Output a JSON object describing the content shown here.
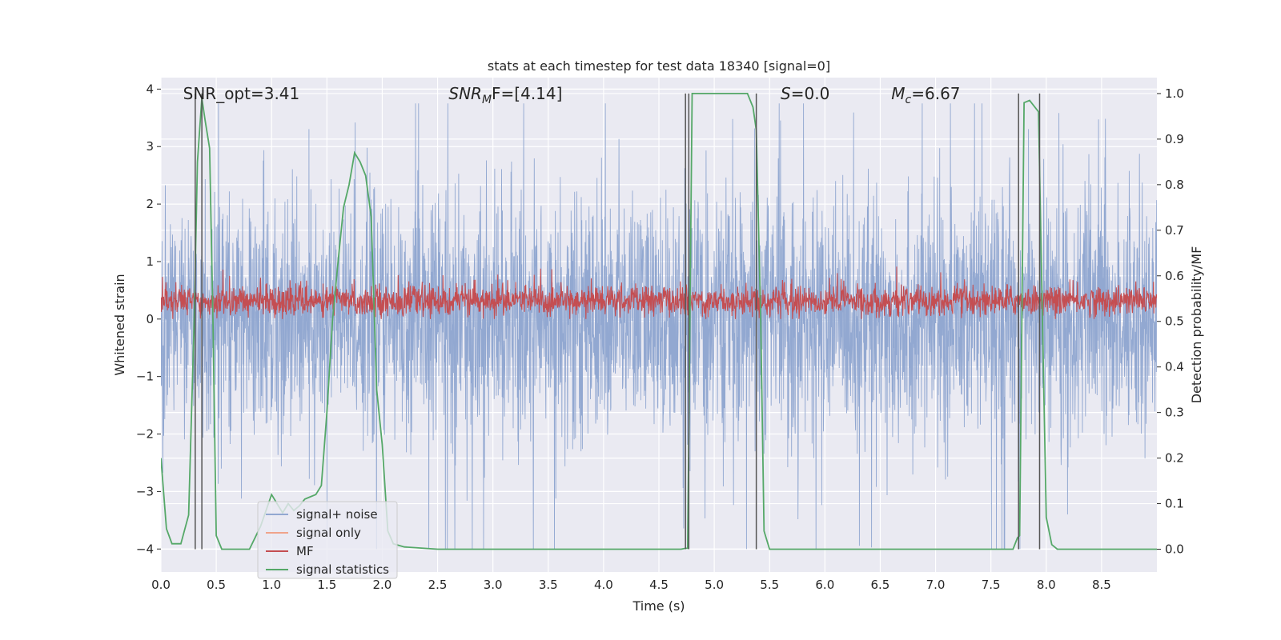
{
  "chart_data": {
    "type": "line",
    "title": "stats at each timestep for test data 18340 [signal=0]",
    "xlabel": "Time (s)",
    "ylabel_left": "Whitened strain",
    "ylabel_right": "Detection probability/MF",
    "xlim": [
      0,
      9.0
    ],
    "ylim_left": [
      -4.4,
      4.2
    ],
    "ylim_right": [
      -0.05,
      1.035
    ],
    "x_ticks": [
      "0.0",
      "0.5",
      "1.0",
      "1.5",
      "2.0",
      "2.5",
      "3.0",
      "3.5",
      "4.0",
      "4.5",
      "5.0",
      "5.5",
      "6.0",
      "6.5",
      "7.0",
      "7.5",
      "8.0",
      "8.5"
    ],
    "y_ticks_left": [
      "4",
      "3",
      "2",
      "1",
      "0",
      "−1",
      "−2",
      "−3",
      "−4"
    ],
    "y_ticks_right": [
      "1.0",
      "0.9",
      "0.8",
      "0.7",
      "0.6",
      "0.5",
      "0.4",
      "0.3",
      "0.2",
      "0.1",
      "0.0"
    ],
    "grid": true,
    "legend_position": "lower-left",
    "annotations": [
      {
        "label": "SNR_opt=3.41",
        "x": 0.2
      },
      {
        "label_main": "SNR",
        "label_sub": "M",
        "label_tail": "F=[4.14]",
        "x": 2.6
      },
      {
        "label_main": "S",
        "label_tail": "=0.0",
        "x": 5.6
      },
      {
        "label_main": "M",
        "label_sub": "c",
        "label_tail": "=6.67",
        "x": 6.6
      }
    ],
    "series": [
      {
        "name": "signal+ noise",
        "color": "#92a8d1",
        "axis": "left",
        "description": "noise band approx -2.5..2.5 with spikes to ±3.7"
      },
      {
        "name": "signal only",
        "color": "#f0a48b",
        "axis": "left",
        "values": []
      },
      {
        "name": "MF",
        "color": "#c44e52",
        "axis": "left",
        "description": "band approx 0..0.7"
      },
      {
        "name": "signal statistics",
        "color": "#55a868",
        "axis": "right",
        "x": [
          0.0,
          0.05,
          0.1,
          0.18,
          0.25,
          0.3,
          0.33,
          0.37,
          0.4,
          0.44,
          0.47,
          0.5,
          0.55,
          0.6,
          0.8,
          0.9,
          1.0,
          1.05,
          1.1,
          1.15,
          1.2,
          1.25,
          1.3,
          1.35,
          1.4,
          1.45,
          1.5,
          1.55,
          1.6,
          1.65,
          1.7,
          1.75,
          1.8,
          1.85,
          1.9,
          1.95,
          2.0,
          2.05,
          2.1,
          2.2,
          2.5,
          3.0,
          4.0,
          4.7,
          4.74,
          4.76,
          4.8,
          5.0,
          5.3,
          5.35,
          5.38,
          5.42,
          5.45,
          5.5,
          5.6,
          6.0,
          7.0,
          7.7,
          7.74,
          7.76,
          7.8,
          7.85,
          7.93,
          7.96,
          8.0,
          8.05,
          8.1,
          8.5,
          9.0
        ],
        "values": [
          0.2,
          0.045,
          0.012,
          0.012,
          0.075,
          0.5,
          0.85,
          0.99,
          0.94,
          0.88,
          0.5,
          0.03,
          0.0,
          0.0,
          0.0,
          0.05,
          0.12,
          0.1,
          0.08,
          0.1,
          0.085,
          0.095,
          0.11,
          0.115,
          0.12,
          0.14,
          0.3,
          0.5,
          0.63,
          0.75,
          0.8,
          0.87,
          0.85,
          0.82,
          0.73,
          0.35,
          0.23,
          0.04,
          0.012,
          0.005,
          0.0,
          0.0,
          0.0,
          0.0,
          0.002,
          0.002,
          1.0,
          1.0,
          1.0,
          0.97,
          0.92,
          0.5,
          0.04,
          0.0,
          0.0,
          0.0,
          0.0,
          0.0,
          0.025,
          0.03,
          0.98,
          0.985,
          0.96,
          0.58,
          0.07,
          0.01,
          0.0,
          0.0,
          0.0
        ]
      }
    ],
    "vertical_markers": [
      0.31,
      0.37,
      4.74,
      4.77,
      5.38,
      7.75,
      7.94
    ],
    "colors": {
      "plot_bg": "#eaeaf2",
      "grid": "#ffffff",
      "marker": "#555555"
    }
  }
}
